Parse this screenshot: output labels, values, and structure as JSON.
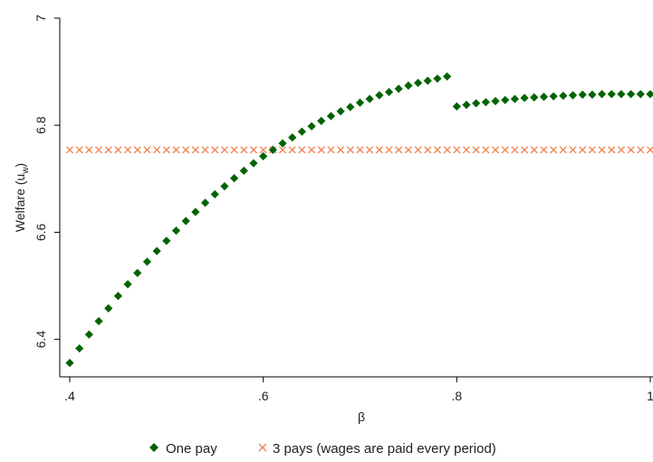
{
  "chart_data": {
    "type": "scatter",
    "title": "",
    "xlabel": "β",
    "ylabel": "Welfare (u",
    "ylabel_sub": "w",
    "ylabel_close": ")",
    "xlim": [
      0.4,
      1.0
    ],
    "ylim": [
      6.33,
      7.0
    ],
    "x_ticks": [
      0.4,
      0.6,
      0.8,
      1.0
    ],
    "x_tick_labels": [
      ".4",
      ".6",
      ".8",
      "1"
    ],
    "y_ticks": [
      6.4,
      6.6,
      6.8,
      7.0
    ],
    "y_tick_labels": [
      "6.4",
      "6.6",
      "6.8",
      "7"
    ],
    "grid": false,
    "legend_position": "bottom",
    "series": [
      {
        "name": "One pay",
        "marker": "diamond",
        "color": "#006400",
        "x": [
          0.4,
          0.41,
          0.42,
          0.43,
          0.44,
          0.45,
          0.46,
          0.47,
          0.48,
          0.49,
          0.5,
          0.51,
          0.52,
          0.53,
          0.54,
          0.55,
          0.56,
          0.57,
          0.58,
          0.59,
          0.6,
          0.61,
          0.62,
          0.63,
          0.64,
          0.65,
          0.66,
          0.67,
          0.68,
          0.69,
          0.7,
          0.71,
          0.72,
          0.73,
          0.74,
          0.75,
          0.76,
          0.77,
          0.78,
          0.79,
          0.8,
          0.81,
          0.82,
          0.83,
          0.84,
          0.85,
          0.86,
          0.87,
          0.88,
          0.89,
          0.9,
          0.91,
          0.92,
          0.93,
          0.94,
          0.95,
          0.96,
          0.97,
          0.98,
          0.99,
          1.0
        ],
        "y": [
          6.356,
          6.383,
          6.409,
          6.434,
          6.458,
          6.481,
          6.503,
          6.524,
          6.545,
          6.565,
          6.584,
          6.603,
          6.621,
          6.638,
          6.655,
          6.671,
          6.686,
          6.701,
          6.715,
          6.729,
          6.742,
          6.754,
          6.766,
          6.777,
          6.788,
          6.798,
          6.808,
          6.817,
          6.826,
          6.834,
          6.842,
          6.849,
          6.856,
          6.862,
          6.868,
          6.874,
          6.879,
          6.883,
          6.887,
          6.891,
          6.835,
          6.838,
          6.841,
          6.843,
          6.845,
          6.847,
          6.849,
          6.851,
          6.852,
          6.853,
          6.854,
          6.855,
          6.856,
          6.857,
          6.857,
          6.858,
          6.858,
          6.858,
          6.858,
          6.858,
          6.858
        ]
      },
      {
        "name": "3 pays (wages are paid every period)",
        "marker": "x",
        "color": "#f08050",
        "x": [
          0.4,
          0.41,
          0.42,
          0.43,
          0.44,
          0.45,
          0.46,
          0.47,
          0.48,
          0.49,
          0.5,
          0.51,
          0.52,
          0.53,
          0.54,
          0.55,
          0.56,
          0.57,
          0.58,
          0.59,
          0.6,
          0.61,
          0.62,
          0.63,
          0.64,
          0.65,
          0.66,
          0.67,
          0.68,
          0.69,
          0.7,
          0.71,
          0.72,
          0.73,
          0.74,
          0.75,
          0.76,
          0.77,
          0.78,
          0.79,
          0.8,
          0.81,
          0.82,
          0.83,
          0.84,
          0.85,
          0.86,
          0.87,
          0.88,
          0.89,
          0.9,
          0.91,
          0.92,
          0.93,
          0.94,
          0.95,
          0.96,
          0.97,
          0.98,
          0.99,
          1.0
        ],
        "y": [
          6.754,
          6.754,
          6.754,
          6.754,
          6.754,
          6.754,
          6.754,
          6.754,
          6.754,
          6.754,
          6.754,
          6.754,
          6.754,
          6.754,
          6.754,
          6.754,
          6.754,
          6.754,
          6.754,
          6.754,
          6.754,
          6.754,
          6.754,
          6.754,
          6.754,
          6.754,
          6.754,
          6.754,
          6.754,
          6.754,
          6.754,
          6.754,
          6.754,
          6.754,
          6.754,
          6.754,
          6.754,
          6.754,
          6.754,
          6.754,
          6.754,
          6.754,
          6.754,
          6.754,
          6.754,
          6.754,
          6.754,
          6.754,
          6.754,
          6.754,
          6.754,
          6.754,
          6.754,
          6.754,
          6.754,
          6.754,
          6.754,
          6.754,
          6.754,
          6.754,
          6.754
        ]
      }
    ]
  }
}
